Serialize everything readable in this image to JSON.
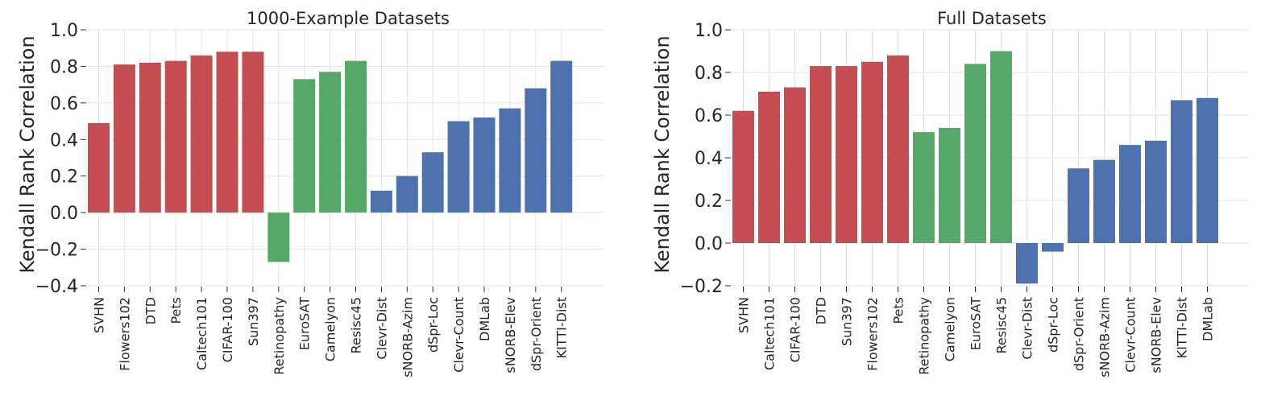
{
  "colors": {
    "natural": "#c44e52",
    "specialized": "#55a868",
    "structured": "#4c72b0"
  },
  "chart_data": [
    {
      "type": "bar",
      "title": "1000-Example Datasets",
      "ylabel": "Kendall Rank Correlation",
      "ylim": [
        -0.4,
        1.0
      ],
      "yticks": [
        -0.4,
        -0.2,
        0.0,
        0.2,
        0.4,
        0.6,
        0.8,
        1.0
      ],
      "ytick_labels": [
        "−0.4",
        "−0.2",
        "0.0",
        "0.2",
        "0.4",
        "0.6",
        "0.8",
        "1.0"
      ],
      "grid": true,
      "categories": [
        "SVHN",
        "Flowers102",
        "DTD",
        "Pets",
        "Caltech101",
        "CIFAR-100",
        "Sun397",
        "Retinopathy",
        "EuroSAT",
        "Camelyon",
        "Resisc45",
        "Clevr-Dist",
        "sNORB-Azim",
        "dSpr-Loc",
        "Clevr-Count",
        "DMLab",
        "sNORB-Elev",
        "dSpr-Orient",
        "KITTI-Dist"
      ],
      "values": [
        0.49,
        0.81,
        0.82,
        0.83,
        0.86,
        0.88,
        0.88,
        -0.27,
        0.73,
        0.77,
        0.83,
        0.12,
        0.2,
        0.33,
        0.5,
        0.52,
        0.57,
        0.68,
        0.83
      ],
      "groups": [
        "natural",
        "natural",
        "natural",
        "natural",
        "natural",
        "natural",
        "natural",
        "specialized",
        "specialized",
        "specialized",
        "specialized",
        "structured",
        "structured",
        "structured",
        "structured",
        "structured",
        "structured",
        "structured",
        "structured"
      ]
    },
    {
      "type": "bar",
      "title": "Full Datasets",
      "ylabel": "Kendall Rank Correlation",
      "ylim": [
        -0.2,
        1.0
      ],
      "yticks": [
        -0.2,
        0.0,
        0.2,
        0.4,
        0.6,
        0.8,
        1.0
      ],
      "ytick_labels": [
        "−0.2",
        "0.0",
        "0.2",
        "0.4",
        "0.6",
        "0.8",
        "1.0"
      ],
      "grid": true,
      "categories": [
        "SVHN",
        "Caltech101",
        "CIFAR-100",
        "DTD",
        "Sun397",
        "Flowers102",
        "Pets",
        "Retinopathy",
        "Camelyon",
        "EuroSAT",
        "Resisc45",
        "Clevr-Dist",
        "dSpr-Loc",
        "dSpr-Orient",
        "sNORB-Azim",
        "Clevr-Count",
        "sNORB-Elev",
        "KITTI-Dist",
        "DMLab"
      ],
      "values": [
        0.62,
        0.71,
        0.73,
        0.83,
        0.83,
        0.85,
        0.88,
        0.52,
        0.54,
        0.84,
        0.9,
        -0.19,
        -0.04,
        0.35,
        0.39,
        0.46,
        0.48,
        0.67,
        0.68
      ],
      "groups": [
        "natural",
        "natural",
        "natural",
        "natural",
        "natural",
        "natural",
        "natural",
        "specialized",
        "specialized",
        "specialized",
        "specialized",
        "structured",
        "structured",
        "structured",
        "structured",
        "structured",
        "structured",
        "structured",
        "structured"
      ]
    }
  ]
}
